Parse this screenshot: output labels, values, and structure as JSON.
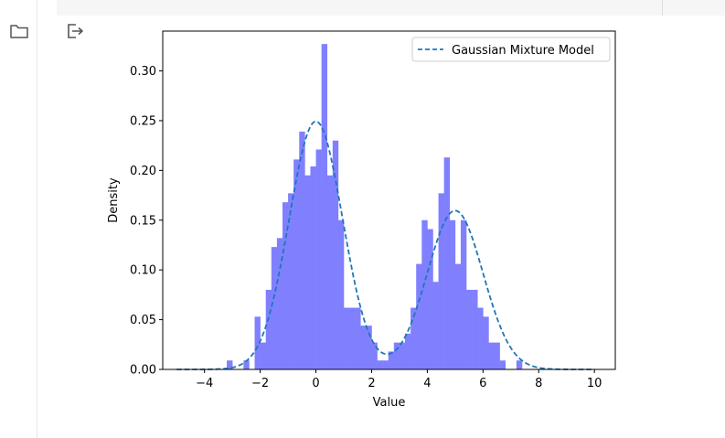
{
  "icons": {
    "folder": "folder-icon",
    "output": "output-exit-icon"
  },
  "chart_data": {
    "type": "histogram",
    "xlabel": "Value",
    "ylabel": "Density",
    "xlim": [
      -5.5,
      10.75
    ],
    "ylim": [
      0,
      0.34
    ],
    "xticks": [
      -4,
      -2,
      0,
      2,
      4,
      6,
      8,
      10
    ],
    "yticks": [
      0.0,
      0.05,
      0.1,
      0.15,
      0.2,
      0.25,
      0.3
    ],
    "grid": false,
    "legend": {
      "position": "top-right",
      "entries": [
        "Gaussian Mixture Model"
      ]
    },
    "histogram": {
      "color": "#8080ff",
      "bin_width": 0.2,
      "bins": [
        {
          "x0": -3.2,
          "density": 0.009
        },
        {
          "x0": -2.6,
          "density": 0.009
        },
        {
          "x0": -2.2,
          "density": 0.053
        },
        {
          "x0": -2.0,
          "density": 0.027
        },
        {
          "x0": -1.8,
          "density": 0.08
        },
        {
          "x0": -1.6,
          "density": 0.123
        },
        {
          "x0": -1.4,
          "density": 0.132
        },
        {
          "x0": -1.2,
          "density": 0.168
        },
        {
          "x0": -1.0,
          "density": 0.177
        },
        {
          "x0": -0.8,
          "density": 0.211
        },
        {
          "x0": -0.6,
          "density": 0.239
        },
        {
          "x0": -0.4,
          "density": 0.195
        },
        {
          "x0": -0.2,
          "density": 0.204
        },
        {
          "x0": 0.0,
          "density": 0.221
        },
        {
          "x0": 0.2,
          "density": 0.327
        },
        {
          "x0": 0.4,
          "density": 0.195
        },
        {
          "x0": 0.6,
          "density": 0.23
        },
        {
          "x0": 0.8,
          "density": 0.15
        },
        {
          "x0": 1.0,
          "density": 0.062
        },
        {
          "x0": 1.2,
          "density": 0.062
        },
        {
          "x0": 1.4,
          "density": 0.062
        },
        {
          "x0": 1.6,
          "density": 0.044
        },
        {
          "x0": 1.8,
          "density": 0.044
        },
        {
          "x0": 2.0,
          "density": 0.027
        },
        {
          "x0": 2.2,
          "density": 0.009
        },
        {
          "x0": 2.4,
          "density": 0.009
        },
        {
          "x0": 2.6,
          "density": 0.018
        },
        {
          "x0": 2.8,
          "density": 0.027
        },
        {
          "x0": 3.0,
          "density": 0.027
        },
        {
          "x0": 3.2,
          "density": 0.036
        },
        {
          "x0": 3.4,
          "density": 0.062
        },
        {
          "x0": 3.6,
          "density": 0.106
        },
        {
          "x0": 3.8,
          "density": 0.15
        },
        {
          "x0": 4.0,
          "density": 0.141
        },
        {
          "x0": 4.2,
          "density": 0.088
        },
        {
          "x0": 4.4,
          "density": 0.177
        },
        {
          "x0": 4.6,
          "density": 0.213
        },
        {
          "x0": 4.8,
          "density": 0.15
        },
        {
          "x0": 5.0,
          "density": 0.106
        },
        {
          "x0": 5.2,
          "density": 0.15
        },
        {
          "x0": 5.4,
          "density": 0.08
        },
        {
          "x0": 5.6,
          "density": 0.08
        },
        {
          "x0": 5.8,
          "density": 0.062
        },
        {
          "x0": 6.0,
          "density": 0.053
        },
        {
          "x0": 6.2,
          "density": 0.027
        },
        {
          "x0": 6.4,
          "density": 0.027
        },
        {
          "x0": 6.6,
          "density": 0.009
        },
        {
          "x0": 7.2,
          "density": 0.009
        }
      ]
    },
    "series": [
      {
        "name": "Gaussian Mixture Model",
        "color": "#1f77b4",
        "style": "dashed",
        "components": [
          {
            "weight": 0.6,
            "mean": 0.0,
            "sd": 0.96
          },
          {
            "weight": 0.4,
            "mean": 5.0,
            "sd": 1.0
          }
        ],
        "x_range": [
          -5,
          10
        ]
      }
    ]
  }
}
